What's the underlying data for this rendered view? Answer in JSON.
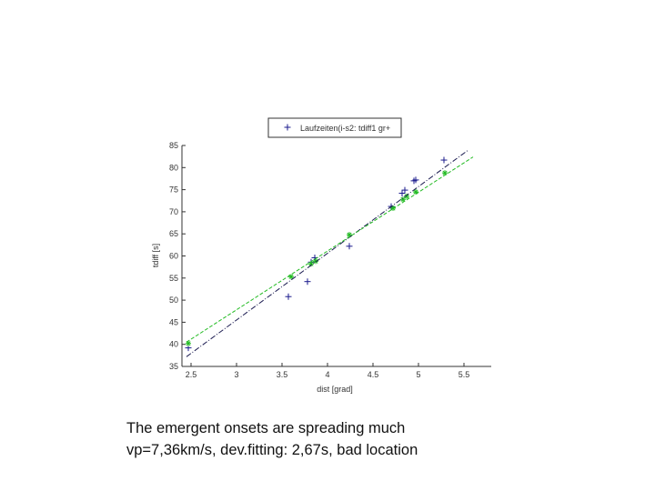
{
  "chart_data": {
    "type": "scatter",
    "xlabel": "dist [grad]",
    "ylabel": "tdiff [s]",
    "xlim": [
      2.4,
      5.8
    ],
    "ylim": [
      35,
      85
    ],
    "xticks": [
      2.5,
      3,
      3.5,
      4,
      4.5,
      5,
      5.5
    ],
    "yticks": [
      35,
      40,
      45,
      50,
      55,
      60,
      65,
      70,
      75,
      80,
      85
    ],
    "x_tick_labels": [
      "2.5",
      "3",
      "3.5",
      "4",
      "4.5",
      "5",
      "5.5"
    ],
    "y_tick_labels": [
      "35",
      "40",
      "45",
      "50",
      "55",
      "60",
      "65",
      "70",
      "75",
      "80",
      "85"
    ],
    "grid": false,
    "legend_position": "top",
    "legend_entries": [
      "Laufzeiten(i-s2: tdiff1 gr+"
    ],
    "series": [
      {
        "name": "Laufzeiten(i-s2: tdiff1 gr+",
        "kind": "scatter",
        "marker": "+",
        "color": "#1a1a8c",
        "points": [
          [
            2.47,
            39.2
          ],
          [
            3.57,
            50.8
          ],
          [
            3.78,
            54.2
          ],
          [
            3.82,
            58.6
          ],
          [
            3.86,
            59.6
          ],
          [
            4.24,
            62.2
          ],
          [
            4.7,
            71.2
          ],
          [
            4.82,
            74.2
          ],
          [
            4.85,
            74.9
          ],
          [
            4.95,
            77.0
          ],
          [
            4.97,
            77.2
          ],
          [
            5.28,
            81.7
          ]
        ]
      },
      {
        "kind": "scatter",
        "marker": "*",
        "color": "#22bb22",
        "points": [
          [
            2.47,
            40.2
          ],
          [
            3.6,
            55.3
          ],
          [
            3.82,
            58.2
          ],
          [
            3.87,
            58.8
          ],
          [
            4.24,
            64.8
          ],
          [
            4.72,
            70.8
          ],
          [
            4.83,
            72.8
          ],
          [
            4.87,
            73.5
          ],
          [
            4.97,
            74.5
          ],
          [
            5.29,
            78.8
          ]
        ]
      },
      {
        "kind": "line",
        "style": "dashdot",
        "color": "#1a1a50",
        "points": [
          [
            2.45,
            37.2
          ],
          [
            5.55,
            84.0
          ]
        ]
      },
      {
        "kind": "line",
        "style": "dashed",
        "color": "#22bb22",
        "points": [
          [
            2.45,
            40.5
          ],
          [
            5.6,
            82.4
          ]
        ]
      }
    ]
  },
  "caption": {
    "line1": "The emergent onsets are spreading much",
    "line2": "vp=7,36km/s, dev.fitting: 2,67s, bad location"
  }
}
